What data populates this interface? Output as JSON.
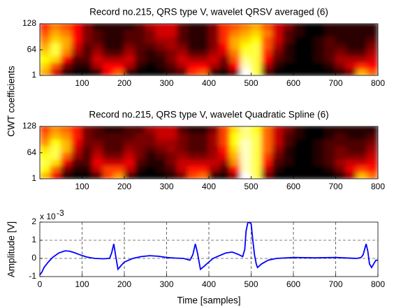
{
  "chart_data": [
    {
      "type": "heatmap",
      "title": "Record no.215, QRS type V, wavelet QRSV averaged (6)",
      "ylabel": "CWT coefficients",
      "colormap": "hot",
      "xlim": [
        0,
        800
      ],
      "ylim": [
        1,
        128
      ],
      "xticks": [
        100,
        200,
        300,
        400,
        500,
        600,
        700,
        800
      ],
      "yticks": [
        1,
        64,
        128
      ],
      "x": [
        12.5,
        37.5,
        62.5,
        87.5,
        112.5,
        137.5,
        162.5,
        187.5,
        212.5,
        237.5,
        262.5,
        287.5,
        312.5,
        337.5,
        362.5,
        387.5,
        412.5,
        437.5,
        462.5,
        487.5,
        512.5,
        537.5,
        562.5,
        587.5,
        612.5,
        637.5,
        662.5,
        687.5,
        712.5,
        737.5,
        762.5,
        787.5
      ],
      "y": [
        9,
        25,
        41,
        57,
        73,
        89,
        105,
        121
      ],
      "values": [
        [
          55,
          30,
          10,
          5,
          5,
          10,
          35,
          45,
          10,
          5,
          5,
          5,
          10,
          15,
          40,
          45,
          10,
          5,
          20,
          85,
          70,
          15,
          5,
          5,
          5,
          5,
          5,
          5,
          10,
          20,
          55,
          45
        ],
        [
          60,
          45,
          20,
          10,
          10,
          25,
          35,
          35,
          25,
          10,
          5,
          10,
          15,
          25,
          35,
          35,
          25,
          15,
          35,
          80,
          70,
          25,
          10,
          5,
          5,
          5,
          5,
          10,
          20,
          30,
          40,
          35
        ],
        [
          65,
          60,
          35,
          15,
          15,
          30,
          25,
          25,
          30,
          15,
          10,
          10,
          20,
          30,
          25,
          25,
          30,
          20,
          45,
          75,
          70,
          35,
          15,
          10,
          5,
          5,
          10,
          15,
          25,
          25,
          25,
          30
        ],
        [
          60,
          70,
          50,
          25,
          15,
          25,
          15,
          15,
          25,
          15,
          10,
          15,
          20,
          25,
          15,
          15,
          25,
          30,
          50,
          70,
          70,
          40,
          20,
          10,
          5,
          5,
          10,
          15,
          20,
          15,
          15,
          25
        ],
        [
          55,
          70,
          55,
          30,
          15,
          20,
          10,
          10,
          20,
          15,
          15,
          20,
          25,
          20,
          10,
          10,
          20,
          35,
          55,
          65,
          70,
          45,
          25,
          10,
          5,
          5,
          10,
          15,
          15,
          10,
          10,
          20
        ],
        [
          50,
          60,
          55,
          35,
          20,
          15,
          10,
          10,
          15,
          15,
          20,
          25,
          25,
          15,
          10,
          10,
          20,
          40,
          55,
          60,
          65,
          45,
          30,
          15,
          5,
          5,
          10,
          15,
          10,
          10,
          10,
          15
        ],
        [
          45,
          55,
          50,
          35,
          20,
          15,
          10,
          10,
          15,
          15,
          20,
          30,
          30,
          15,
          10,
          10,
          20,
          40,
          50,
          55,
          60,
          50,
          30,
          15,
          10,
          5,
          5,
          10,
          10,
          10,
          10,
          10
        ],
        [
          40,
          50,
          45,
          35,
          20,
          10,
          10,
          10,
          10,
          15,
          25,
          30,
          30,
          15,
          10,
          10,
          20,
          40,
          45,
          50,
          55,
          45,
          30,
          20,
          10,
          5,
          5,
          10,
          10,
          10,
          10,
          10
        ]
      ]
    },
    {
      "type": "heatmap",
      "title": "Record no.215, QRS type V, wavelet Quadratic Spline (6)",
      "colormap": "hot",
      "xlim": [
        0,
        800
      ],
      "ylim": [
        1,
        128
      ],
      "xticks": [
        100,
        200,
        300,
        400,
        500,
        600,
        700,
        800
      ],
      "yticks": [
        1,
        64,
        128
      ],
      "x": [
        12.5,
        37.5,
        62.5,
        87.5,
        112.5,
        137.5,
        162.5,
        187.5,
        212.5,
        237.5,
        262.5,
        287.5,
        312.5,
        337.5,
        362.5,
        387.5,
        412.5,
        437.5,
        462.5,
        487.5,
        512.5,
        537.5,
        562.5,
        587.5,
        612.5,
        637.5,
        662.5,
        687.5,
        712.5,
        737.5,
        762.5,
        787.5
      ],
      "y": [
        9,
        25,
        41,
        57,
        73,
        89,
        105,
        121
      ],
      "values": [
        [
          60,
          35,
          10,
          5,
          5,
          15,
          45,
          55,
          15,
          5,
          5,
          5,
          10,
          20,
          45,
          50,
          10,
          5,
          25,
          90,
          75,
          20,
          5,
          5,
          5,
          5,
          5,
          5,
          10,
          25,
          60,
          50
        ],
        [
          70,
          50,
          20,
          10,
          10,
          30,
          45,
          45,
          30,
          10,
          5,
          10,
          15,
          30,
          40,
          40,
          25,
          15,
          40,
          85,
          75,
          30,
          10,
          5,
          5,
          5,
          5,
          10,
          20,
          35,
          45,
          40
        ],
        [
          75,
          65,
          35,
          15,
          15,
          35,
          30,
          30,
          35,
          15,
          10,
          10,
          20,
          30,
          30,
          30,
          30,
          25,
          55,
          85,
          75,
          40,
          15,
          10,
          5,
          5,
          10,
          15,
          25,
          30,
          30,
          35
        ],
        [
          70,
          75,
          50,
          25,
          15,
          30,
          20,
          20,
          30,
          20,
          10,
          15,
          20,
          25,
          20,
          20,
          25,
          35,
          60,
          85,
          75,
          45,
          20,
          10,
          5,
          5,
          10,
          15,
          20,
          20,
          20,
          30
        ],
        [
          65,
          75,
          60,
          30,
          15,
          25,
          15,
          15,
          25,
          20,
          15,
          20,
          25,
          20,
          15,
          15,
          25,
          40,
          65,
          85,
          75,
          50,
          25,
          10,
          5,
          5,
          10,
          15,
          20,
          15,
          15,
          25
        ],
        [
          55,
          70,
          60,
          35,
          20,
          20,
          15,
          15,
          20,
          20,
          20,
          25,
          25,
          20,
          15,
          15,
          25,
          45,
          70,
          85,
          75,
          50,
          30,
          15,
          5,
          5,
          10,
          15,
          15,
          15,
          15,
          20
        ],
        [
          50,
          60,
          55,
          40,
          20,
          15,
          15,
          15,
          15,
          20,
          20,
          30,
          30,
          20,
          15,
          15,
          25,
          45,
          70,
          80,
          75,
          50,
          30,
          15,
          10,
          5,
          5,
          10,
          15,
          10,
          10,
          15
        ],
        [
          45,
          55,
          50,
          40,
          20,
          15,
          10,
          10,
          15,
          15,
          25,
          30,
          30,
          15,
          10,
          10,
          20,
          45,
          65,
          80,
          70,
          50,
          30,
          20,
          10,
          5,
          5,
          10,
          10,
          10,
          10,
          10
        ]
      ]
    },
    {
      "type": "line",
      "xlabel": "Time [samples]",
      "ylabel": "Amplitude [V]",
      "y_multiplier": "x 10",
      "y_multiplier_exponent": "-3",
      "grid": true,
      "color": "#0000ff",
      "xlim": [
        0,
        800
      ],
      "ylim": [
        -1,
        2
      ],
      "xticks": [
        0,
        100,
        200,
        300,
        400,
        500,
        600,
        700,
        800
      ],
      "yticks": [
        -1,
        0,
        1,
        2
      ],
      "x": [
        0,
        5,
        10,
        20,
        30,
        45,
        60,
        70,
        80,
        95,
        110,
        130,
        150,
        165,
        170,
        175,
        179,
        185,
        192,
        200,
        220,
        240,
        260,
        280,
        300,
        320,
        340,
        355,
        362,
        368,
        373,
        380,
        388,
        395,
        410,
        425,
        440,
        455,
        470,
        480,
        485,
        488,
        492,
        495,
        500,
        504,
        508,
        512,
        515,
        520,
        525,
        540,
        560,
        600,
        650,
        700,
        750,
        760,
        765,
        772,
        776,
        780,
        785,
        790,
        795,
        800
      ],
      "values": [
        -0.9,
        -0.75,
        -0.5,
        -0.2,
        0.05,
        0.3,
        0.42,
        0.4,
        0.33,
        0.2,
        0.08,
        0.0,
        -0.02,
        0.0,
        0.3,
        0.8,
        0.2,
        -0.6,
        -0.4,
        -0.2,
        0.0,
        0.1,
        0.15,
        0.12,
        0.05,
        0.02,
        0.0,
        -0.1,
        0.2,
        0.8,
        0.3,
        -0.6,
        -0.45,
        -0.3,
        0.0,
        0.15,
        0.3,
        0.35,
        0.22,
        0.1,
        0.5,
        1.5,
        1.95,
        2.0,
        1.9,
        1.0,
        0.2,
        -0.3,
        -0.5,
        -0.4,
        -0.3,
        -0.1,
        0.0,
        0.05,
        0.03,
        0.05,
        0.0,
        0.05,
        0.2,
        0.8,
        0.4,
        -0.3,
        -0.5,
        -0.3,
        -0.1,
        -0.1
      ]
    }
  ]
}
